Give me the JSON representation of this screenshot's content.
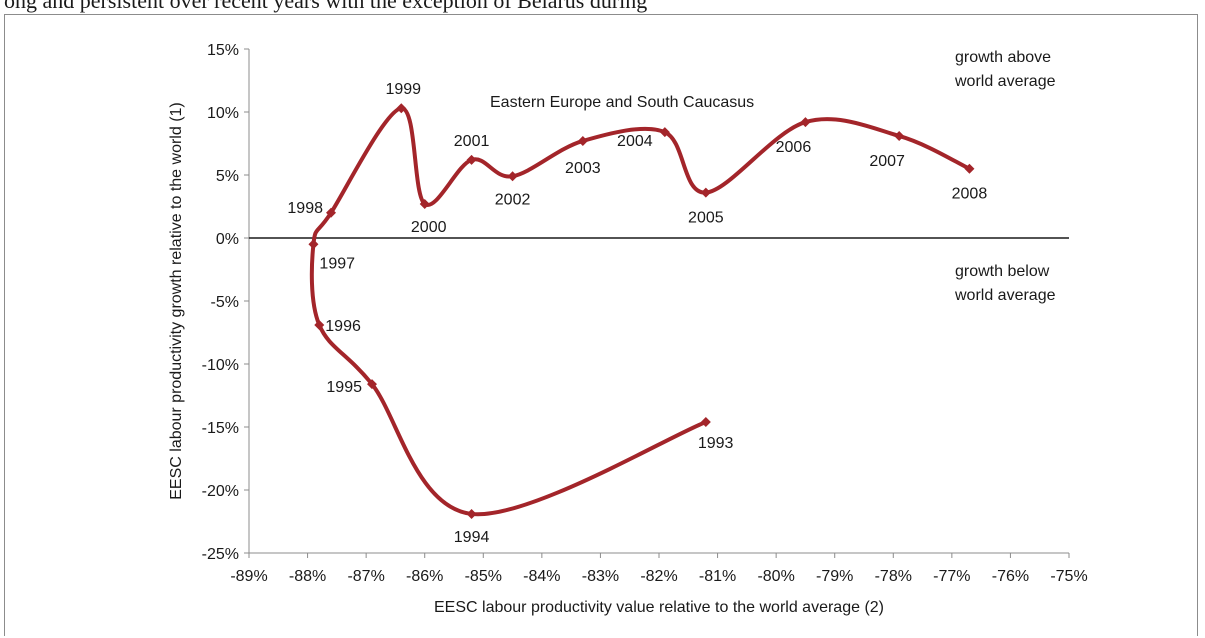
{
  "page": {
    "top_text": "ong and persistent over recent years with the exception of Belarus during"
  },
  "chart_data": {
    "type": "line",
    "title": "",
    "xlabel": "EESC labour productivity value relative to the world average (2)",
    "ylabel": "EESC  labour productivity growth relative to the world (1)",
    "xlim": [
      -89,
      -75
    ],
    "ylim": [
      -25,
      15
    ],
    "x_ticks": [
      "-89%",
      "-88%",
      "-87%",
      "-86%",
      "-85%",
      "-84%",
      "-83%",
      "-82%",
      "-81%",
      "-80%",
      "-79%",
      "-78%",
      "-77%",
      "-76%",
      "-75%"
    ],
    "y_ticks": [
      "15%",
      "10%",
      "5%",
      "0%",
      "-5%",
      "-10%",
      "-15%",
      "-20%",
      "-25%"
    ],
    "grid": false,
    "series": [
      {
        "name": "Eastern Europe and South Caucasus",
        "color": "#a3252a",
        "smooth": true,
        "points": [
          {
            "label": "1993",
            "x": -81.2,
            "y": -14.6
          },
          {
            "label": "1994",
            "x": -85.2,
            "y": -21.9
          },
          {
            "label": "1995",
            "x": -86.9,
            "y": -11.6
          },
          {
            "label": "1996",
            "x": -87.8,
            "y": -6.9
          },
          {
            "label": "1997",
            "x": -87.9,
            "y": -0.5
          },
          {
            "label": "1998",
            "x": -87.6,
            "y": 2.0
          },
          {
            "label": "1999",
            "x": -86.4,
            "y": 10.3
          },
          {
            "label": "2000",
            "x": -86.0,
            "y": 2.7
          },
          {
            "label": "2001",
            "x": -85.2,
            "y": 6.2
          },
          {
            "label": "2002",
            "x": -84.5,
            "y": 4.9
          },
          {
            "label": "2003",
            "x": -83.3,
            "y": 7.7
          },
          {
            "label": "2004",
            "x": -81.9,
            "y": 8.4
          },
          {
            "label": "2005",
            "x": -81.2,
            "y": 3.6
          },
          {
            "label": "2006",
            "x": -79.5,
            "y": 9.2
          },
          {
            "label": "2007",
            "x": -77.9,
            "y": 8.1
          },
          {
            "label": "2008",
            "x": -76.7,
            "y": 5.5
          }
        ]
      }
    ],
    "annotations": {
      "above_line1": "growth above",
      "above_line2": "world  average",
      "below_line1": "growth below",
      "below_line2": "world  average"
    }
  }
}
